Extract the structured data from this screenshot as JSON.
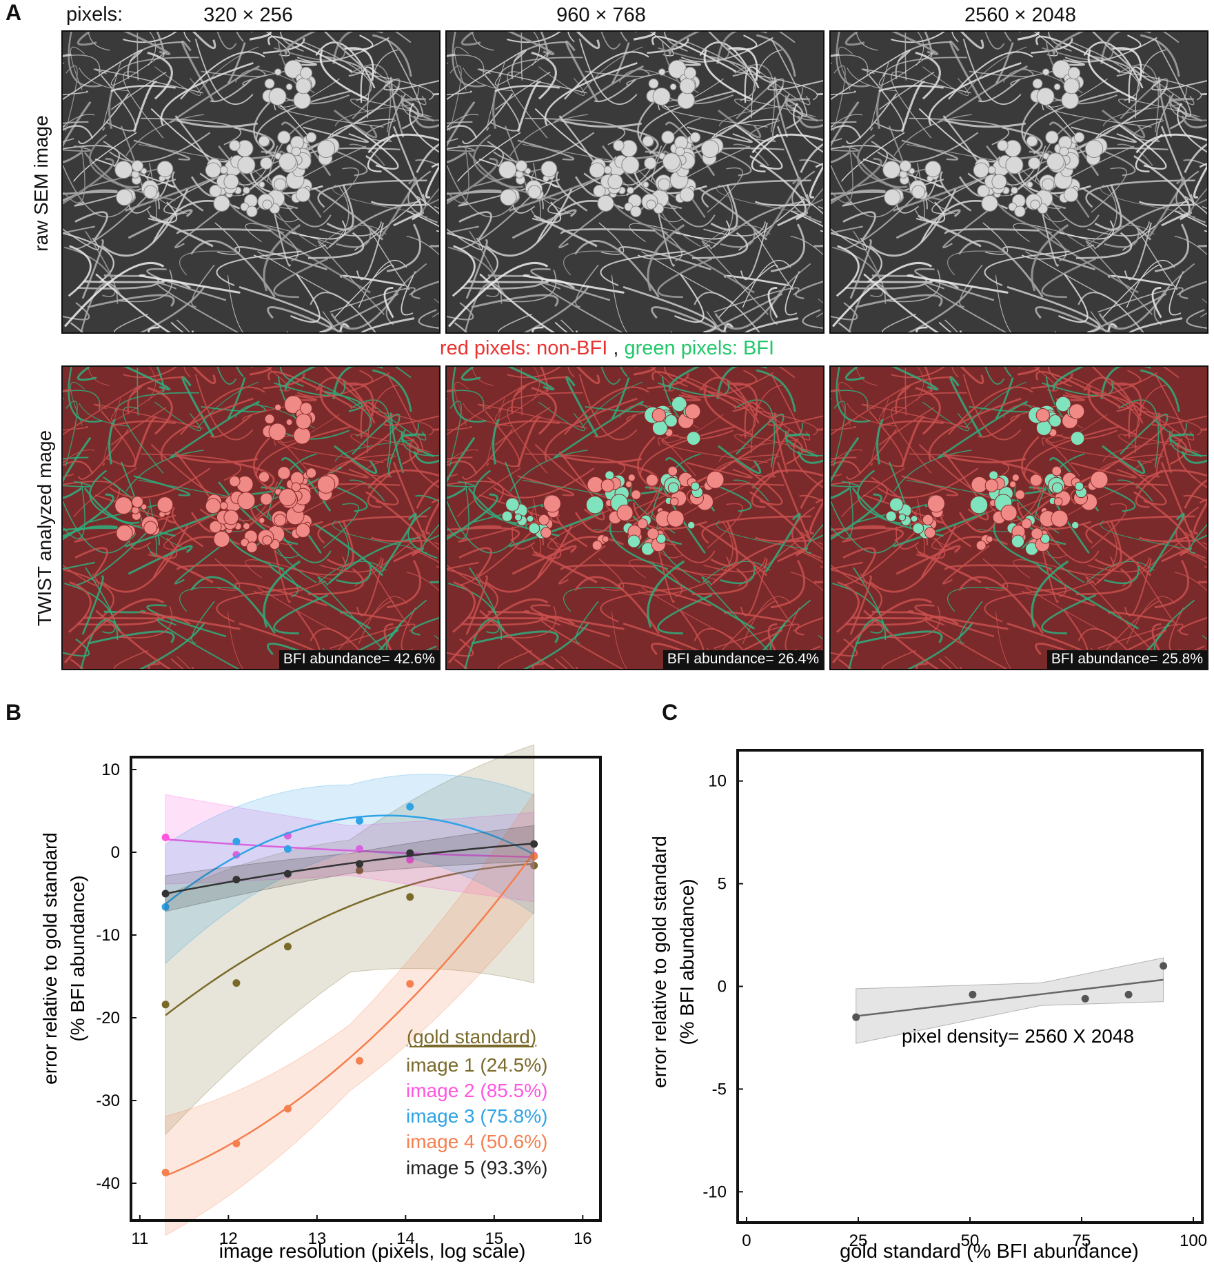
{
  "panel_a": {
    "letter": "A",
    "pixels_label": "pixels:",
    "resolutions": [
      "320 × 256",
      "960 × 768",
      "2560 × 2048"
    ],
    "row_label_raw": "raw SEM image",
    "row_label_twist": "TWIST analyzed mage",
    "legend_red": "red pixels: non-BFI",
    "legend_sep": " , ",
    "legend_green": "green pixels: BFI",
    "abundances": [
      "BFI abundance= 42.6%",
      "BFI abundance= 26.4%",
      "BFI abundance= 25.8%"
    ],
    "green_fraction": [
      0.426,
      0.264,
      0.258
    ],
    "colors": {
      "non_bfi": "#c9504f",
      "bfi": "#2fae7e"
    }
  },
  "panel_b": {
    "letter": "B",
    "xlabel": "image resolution (pixels, log scale)",
    "ylabel_1": "error relative to gold standard",
    "ylabel_2": "(% BFI abundance)",
    "legend_title": "(gold standard)",
    "legend_entries": [
      "image 1 (24.5%)",
      "image 2 (85.5%)",
      "image 3 (75.8%)",
      "image 4 (50.6%)",
      "image 5 (93.3%)"
    ]
  },
  "panel_c": {
    "letter": "C",
    "xlabel": "gold standard (% BFI abundance)",
    "ylabel_1": "error relative to gold standard",
    "ylabel_2": "(% BFI abundance)",
    "annotation": "pixel density= 2560 X 2048"
  },
  "chart_data": [
    {
      "type": "scatter",
      "xlabel": "image resolution (pixels, log scale)",
      "ylabel": "error relative to gold standard (% BFI abundance)",
      "xlim": [
        10.9,
        16.2
      ],
      "ylim": [
        -44.5,
        11.5
      ],
      "xticks": [
        11,
        12,
        13,
        14,
        15,
        16
      ],
      "yticks": [
        10,
        0,
        -10,
        -20,
        -30,
        -40
      ],
      "grid": false,
      "legend_position": "bottom-right",
      "series": [
        {
          "name": "image 1 (24.5%)",
          "color": "#7a6a2a",
          "x": [
            11.29,
            12.09,
            12.67,
            13.48,
            14.05,
            15.45
          ],
          "y": [
            -18.4,
            -15.8,
            -11.4,
            -2.2,
            -5.4,
            -1.6
          ]
        },
        {
          "name": "image 2 (85.5%)",
          "color": "#ff55e0",
          "x": [
            11.29,
            12.09,
            12.67,
            13.48,
            14.05,
            15.45
          ],
          "y": [
            1.8,
            -0.3,
            2.0,
            0.4,
            -0.9,
            -0.4
          ]
        },
        {
          "name": "image 3 (75.8%)",
          "color": "#2fa3e6",
          "x": [
            11.29,
            12.09,
            12.67,
            13.48,
            14.05,
            15.45
          ],
          "y": [
            -6.6,
            1.3,
            0.4,
            3.8,
            5.5,
            -0.5
          ]
        },
        {
          "name": "image 4 (50.6%)",
          "color": "#f47f4f",
          "x": [
            11.29,
            12.09,
            12.67,
            13.48,
            14.05,
            15.45
          ],
          "y": [
            -38.7,
            -35.2,
            -31.0,
            -25.2,
            -15.9,
            -0.5
          ]
        },
        {
          "name": "image 5 (93.3%)",
          "color": "#333333",
          "x": [
            11.29,
            12.09,
            12.67,
            13.48,
            14.05,
            15.45
          ],
          "y": [
            -5.0,
            -3.3,
            -2.6,
            -1.4,
            -0.1,
            1.0
          ]
        }
      ]
    },
    {
      "type": "scatter",
      "xlabel": "gold standard (% BFI abundance)",
      "ylabel": "error relative to gold standard (% BFI abundance)",
      "xlim": [
        -2,
        102
      ],
      "ylim": [
        -11.5,
        11.5
      ],
      "xticks": [
        0,
        25,
        50,
        75,
        100
      ],
      "yticks": [
        10,
        5,
        0,
        -5,
        -10
      ],
      "grid": false,
      "annotation": "pixel density= 2560 X 2048",
      "series": [
        {
          "color": "#555555",
          "x": [
            24.5,
            50.6,
            75.8,
            85.5,
            93.3
          ],
          "y": [
            -1.5,
            -0.4,
            -0.6,
            -0.4,
            1.0
          ]
        }
      ]
    }
  ]
}
